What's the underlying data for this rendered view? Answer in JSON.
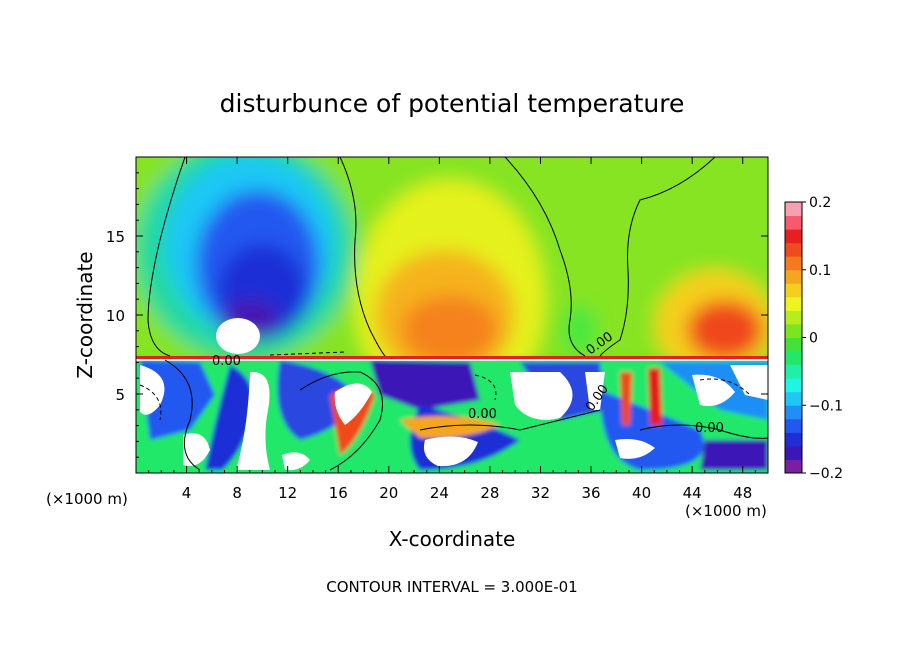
{
  "chart_data": {
    "type": "heatmap",
    "title": "disturbunce of potential temperature",
    "xlabel": "X-coordinate",
    "ylabel": "Z-coordinate",
    "xlim": [
      0,
      50
    ],
    "ylim": [
      0,
      20
    ],
    "x_ticks": [
      4,
      8,
      12,
      16,
      20,
      24,
      28,
      32,
      36,
      40,
      44,
      48
    ],
    "x_tick_labels": [
      "4",
      "8",
      "12",
      "16",
      "20",
      "24",
      "28",
      "32",
      "36",
      "40",
      "44",
      "48"
    ],
    "y_ticks": [
      5,
      10,
      15
    ],
    "y_tick_labels": [
      "5",
      "10",
      "15"
    ],
    "x_unit_left": "(×1000 m)",
    "x_unit_right": "(×1000 m)",
    "colorbar": {
      "range": [
        -0.2,
        0.2
      ],
      "tick_labels": [
        "0.2",
        "0.1",
        "0",
        "−0.1",
        "−0.2"
      ],
      "tick_values": [
        0.2,
        0.1,
        0,
        -0.1,
        -0.2
      ],
      "colors": [
        "#7b1fa2",
        "#3d16b8",
        "#1f2fd6",
        "#2058f0",
        "#1f8ff5",
        "#1fc7f5",
        "#1ff5e5",
        "#1ff0a8",
        "#22e86a",
        "#41e23a",
        "#7be51f",
        "#b9ec1f",
        "#eef41f",
        "#f5cf1f",
        "#f5a61f",
        "#f57a1f",
        "#f04a1f",
        "#e61f1f",
        "#f55a6e",
        "#f7a0b0"
      ]
    },
    "contour_labels": [
      "0.00",
      "0.00",
      "0.00",
      "0.00",
      "0.00"
    ],
    "contour_interval_text": "CONTOUR INTERVAL = 3.000E-01"
  }
}
